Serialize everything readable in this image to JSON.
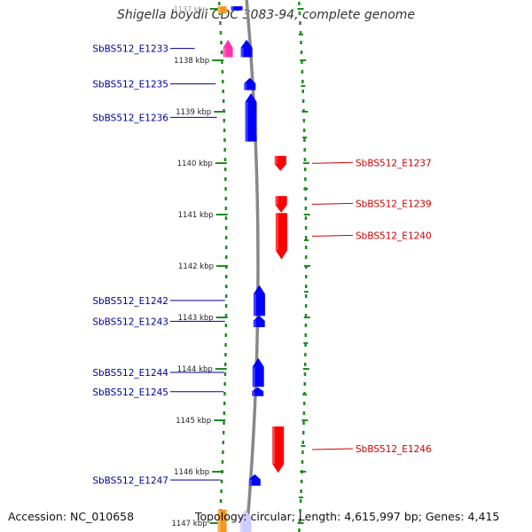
{
  "title": "Shigella boydii CDC 3083-94, complete genome",
  "footer": {
    "accession": "Accession: NC_010658",
    "stats": "Topology: circular; Length: 4,615,997 bp; Genes: 4,415"
  },
  "ticks": [
    {
      "label": "1137 kbp",
      "faded": true
    },
    {
      "label": "1138 kbp"
    },
    {
      "label": "1139 kbp"
    },
    {
      "label": "1140 kbp"
    },
    {
      "label": "1141 kbp"
    },
    {
      "label": "1142 kbp"
    },
    {
      "label": "1143 kbp"
    },
    {
      "label": "1144 kbp"
    },
    {
      "label": "1145 kbp"
    },
    {
      "label": "1146 kbp"
    },
    {
      "label": "1147 kbp"
    }
  ],
  "genes": [
    {
      "label": "",
      "strand": "left",
      "start_kbp": 1136.95,
      "end_kbp": 1137.09,
      "color": "#f5961e",
      "direction": "none"
    },
    {
      "label": "",
      "strand": "left",
      "start_kbp": 1136.95,
      "end_kbp": 1137.03,
      "color": "#0000ff",
      "direction": "none"
    },
    {
      "label": "SbBS512_E1233",
      "strand": "left",
      "start_kbp": 1137.6,
      "end_kbp": 1137.94,
      "color": "#ff33aa",
      "direction": "up"
    },
    {
      "label": "",
      "strand": "left",
      "start_kbp": 1137.6,
      "end_kbp": 1137.94,
      "color": "#0000ff",
      "direction": "up"
    },
    {
      "label": "SbBS512_E1235",
      "strand": "left",
      "start_kbp": 1138.34,
      "end_kbp": 1138.58,
      "color": "#0000ff",
      "direction": "up"
    },
    {
      "label": "SbBS512_E1236",
      "strand": "left",
      "start_kbp": 1138.64,
      "end_kbp": 1139.58,
      "color": "#0000ff",
      "direction": "up"
    },
    {
      "label": "SbBS512_E1237",
      "strand": "right",
      "start_kbp": 1139.86,
      "end_kbp": 1140.15,
      "color": "#ff0000",
      "direction": "down"
    },
    {
      "label": "SbBS512_E1239",
      "strand": "right",
      "start_kbp": 1140.64,
      "end_kbp": 1140.96,
      "color": "#ff0000",
      "direction": "down"
    },
    {
      "label": "SbBS512_E1240",
      "strand": "right",
      "start_kbp": 1140.97,
      "end_kbp": 1141.87,
      "color": "#ff0000",
      "direction": "down"
    },
    {
      "label": "SbBS512_E1242",
      "strand": "left",
      "start_kbp": 1142.37,
      "end_kbp": 1142.97,
      "color": "#0000ff",
      "direction": "up"
    },
    {
      "label": "SbBS512_E1243",
      "strand": "left",
      "start_kbp": 1142.96,
      "end_kbp": 1143.19,
      "color": "#0000ff",
      "direction": "up"
    },
    {
      "label": "SbBS512_E1244",
      "strand": "left",
      "start_kbp": 1143.79,
      "end_kbp": 1144.35,
      "color": "#0000ff",
      "direction": "up"
    },
    {
      "label": "SbBS512_E1245",
      "strand": "left",
      "start_kbp": 1144.36,
      "end_kbp": 1144.53,
      "color": "#0000ff",
      "direction": "up"
    },
    {
      "label": "SbBS512_E1246",
      "strand": "right",
      "start_kbp": 1145.12,
      "end_kbp": 1146.02,
      "color": "#ff0000",
      "direction": "down"
    },
    {
      "label": "SbBS512_E1247",
      "strand": "left",
      "start_kbp": 1146.05,
      "end_kbp": 1146.27,
      "color": "#0000ff",
      "direction": "up"
    },
    {
      "label": "",
      "strand": "left",
      "start_kbp": 1146.74,
      "end_kbp": 1147.2,
      "color": "#f5961e",
      "direction": "none"
    },
    {
      "label": "",
      "strand": "left",
      "start_kbp": 1146.74,
      "end_kbp": 1147.2,
      "color": "#ccccff",
      "direction": "up"
    }
  ]
}
